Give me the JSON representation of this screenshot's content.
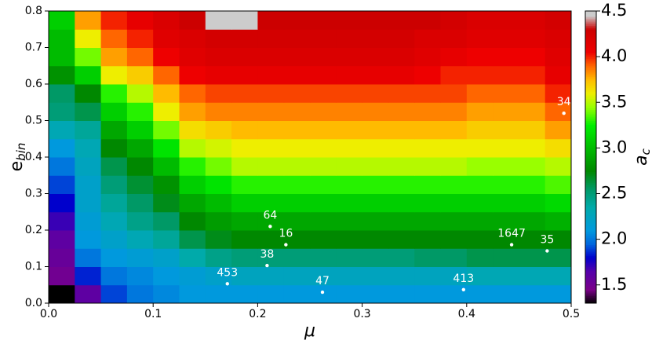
{
  "chart_data": {
    "type": "heatmap",
    "xlabel": "μ",
    "ylabel": "e",
    "ylabel_sub": "bin",
    "cbar_label": "a",
    "cbar_label_sub": "c",
    "xlim": [
      0,
      0.5
    ],
    "ylim": [
      0,
      0.8
    ],
    "xticks": [
      {
        "value": 0,
        "label": "0.0"
      },
      0.1,
      0.2,
      0.3,
      0.4,
      0.5
    ],
    "yticks": [
      {
        "value": 0,
        "label": "0.0"
      },
      0.1,
      0.2,
      0.3,
      0.4,
      0.5,
      0.6,
      0.7,
      0.8
    ],
    "xbins": [
      0,
      0.025,
      0.05,
      0.075,
      0.1,
      0.125,
      0.15,
      0.175,
      0.2,
      0.225,
      0.25,
      0.275,
      0.3,
      0.325,
      0.35,
      0.375,
      0.4,
      0.425,
      0.45,
      0.475,
      0.5
    ],
    "ybins": [
      0,
      0.05,
      0.1,
      0.15,
      0.2,
      0.25,
      0.3,
      0.35,
      0.4,
      0.45,
      0.5,
      0.55,
      0.6,
      0.65,
      0.7,
      0.75,
      0.8
    ],
    "z": [
      [
        1.3,
        1.6,
        1.9,
        2.0,
        2.05,
        2.1,
        2.1,
        2.1,
        2.1,
        2.1,
        2.1,
        2.1,
        2.1,
        2.1,
        2.1,
        2.1,
        2.1,
        2.1,
        2.1,
        2.1
      ],
      [
        1.5,
        1.85,
        2.0,
        2.05,
        2.1,
        2.15,
        2.2,
        2.25,
        2.25,
        2.25,
        2.25,
        2.25,
        2.25,
        2.25,
        2.25,
        2.25,
        2.3,
        2.3,
        2.3,
        2.3
      ],
      [
        1.55,
        2.0,
        2.1,
        2.15,
        2.2,
        2.35,
        2.45,
        2.5,
        2.5,
        2.5,
        2.5,
        2.5,
        2.5,
        2.5,
        2.55,
        2.55,
        2.6,
        2.6,
        2.6,
        2.6
      ],
      [
        1.6,
        2.1,
        2.2,
        2.3,
        2.4,
        2.6,
        2.7,
        2.75,
        2.75,
        2.75,
        2.75,
        2.75,
        2.75,
        2.75,
        2.75,
        2.75,
        2.75,
        2.75,
        2.75,
        2.75
      ],
      [
        1.7,
        2.15,
        2.3,
        2.45,
        2.55,
        2.75,
        2.85,
        2.9,
        2.9,
        2.9,
        2.9,
        2.9,
        2.9,
        2.9,
        2.9,
        2.9,
        2.9,
        2.9,
        2.9,
        2.95
      ],
      [
        1.8,
        2.2,
        2.4,
        2.55,
        2.7,
        2.9,
        3.0,
        3.1,
        3.1,
        3.1,
        3.1,
        3.1,
        3.1,
        3.1,
        3.1,
        3.1,
        3.1,
        3.1,
        3.1,
        3.15
      ],
      [
        1.9,
        2.2,
        2.5,
        2.65,
        2.8,
        3.1,
        3.2,
        3.3,
        3.3,
        3.3,
        3.3,
        3.3,
        3.3,
        3.3,
        3.3,
        3.3,
        3.3,
        3.3,
        3.3,
        3.35
      ],
      [
        2.0,
        2.25,
        2.6,
        2.75,
        3.0,
        3.3,
        3.4,
        3.5,
        3.5,
        3.5,
        3.5,
        3.5,
        3.5,
        3.5,
        3.5,
        3.5,
        3.45,
        3.45,
        3.45,
        3.5
      ],
      [
        2.1,
        2.3,
        2.75,
        2.9,
        3.2,
        3.5,
        3.55,
        3.6,
        3.6,
        3.6,
        3.6,
        3.6,
        3.6,
        3.6,
        3.6,
        3.6,
        3.6,
        3.6,
        3.6,
        3.65
      ],
      [
        2.3,
        2.4,
        2.9,
        3.1,
        3.4,
        3.65,
        3.7,
        3.75,
        3.75,
        3.75,
        3.75,
        3.75,
        3.75,
        3.75,
        3.75,
        3.75,
        3.7,
        3.7,
        3.7,
        3.8
      ],
      [
        2.5,
        2.6,
        3.1,
        3.3,
        3.6,
        3.8,
        3.85,
        3.85,
        3.85,
        3.85,
        3.85,
        3.85,
        3.85,
        3.85,
        3.85,
        3.85,
        3.8,
        3.8,
        3.8,
        3.9
      ],
      [
        2.55,
        2.75,
        3.3,
        3.5,
        3.75,
        3.9,
        3.95,
        3.95,
        3.95,
        3.95,
        3.95,
        3.95,
        3.95,
        3.95,
        3.95,
        3.95,
        3.9,
        3.9,
        3.9,
        4.0
      ],
      [
        2.8,
        3.1,
        3.6,
        3.7,
        3.9,
        4.05,
        4.1,
        4.1,
        4.1,
        4.1,
        4.1,
        4.1,
        4.1,
        4.1,
        4.05,
        4.0,
        4.0,
        4.0,
        4.0,
        4.1
      ],
      [
        3.0,
        3.4,
        3.8,
        3.9,
        4.05,
        4.15,
        4.2,
        4.2,
        4.2,
        4.2,
        4.2,
        4.2,
        4.2,
        4.2,
        4.15,
        4.1,
        4.05,
        4.05,
        4.05,
        4.15
      ],
      [
        3.0,
        3.6,
        3.9,
        4.0,
        4.15,
        4.2,
        4.25,
        4.25,
        4.25,
        4.25,
        4.25,
        4.25,
        4.25,
        4.25,
        4.2,
        4.2,
        4.15,
        4.15,
        4.15,
        4.2
      ],
      [
        3.1,
        3.8,
        4.0,
        4.1,
        4.2,
        4.3,
        4.5,
        4.5,
        4.3,
        4.3,
        4.3,
        4.3,
        4.3,
        4.3,
        4.3,
        4.25,
        4.2,
        4.2,
        4.2,
        4.25
      ]
    ],
    "clim": [
      1.3,
      4.5
    ],
    "cticks": [
      1.5,
      {
        "value": 2,
        "label": "2.0"
      },
      2.5,
      {
        "value": 3,
        "label": "3.0"
      },
      3.5,
      {
        "value": 4,
        "label": "4.0"
      },
      4.5
    ],
    "colormap": [
      {
        "value": 1.3,
        "color": "#000000"
      },
      {
        "value": 1.45,
        "color": "#7a0088"
      },
      {
        "value": 1.65,
        "color": "#5500aa"
      },
      {
        "value": 1.8,
        "color": "#0000cc"
      },
      {
        "value": 1.95,
        "color": "#0066dd"
      },
      {
        "value": 2.1,
        "color": "#0099dd"
      },
      {
        "value": 2.35,
        "color": "#00aaaa"
      },
      {
        "value": 2.55,
        "color": "#009966"
      },
      {
        "value": 2.75,
        "color": "#008800"
      },
      {
        "value": 3.0,
        "color": "#00bb00"
      },
      {
        "value": 3.25,
        "color": "#00ee00"
      },
      {
        "value": 3.45,
        "color": "#99ff00"
      },
      {
        "value": 3.6,
        "color": "#eeee00"
      },
      {
        "value": 3.75,
        "color": "#ffbb00"
      },
      {
        "value": 3.9,
        "color": "#ff6600"
      },
      {
        "value": 4.05,
        "color": "#ee0000"
      },
      {
        "value": 4.3,
        "color": "#cc0000"
      },
      {
        "value": 4.45,
        "color": "#cccccc"
      }
    ],
    "points": {
      "color": "#ffffff",
      "labels": [
        "34",
        "64",
        "16",
        "38",
        "453",
        "47",
        "413",
        "1647",
        "35"
      ],
      "x": [
        0.493,
        0.212,
        0.227,
        0.209,
        0.171,
        0.262,
        0.397,
        0.443,
        0.477
      ],
      "y": [
        0.52,
        0.21,
        0.16,
        0.103,
        0.053,
        0.03,
        0.037,
        0.16,
        0.143
      ]
    }
  }
}
